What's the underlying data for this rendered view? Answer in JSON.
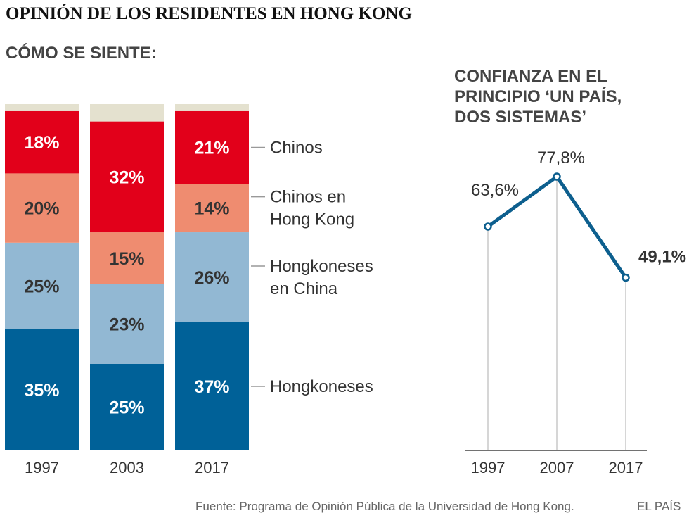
{
  "header": {
    "title": "OPINIÓN DE LOS RESIDENTES EN HONG KONG"
  },
  "colors": {
    "hongkoneses": "#006198",
    "hongkoneses_en_china": "#92b8d3",
    "chinos_en_hong_kong": "#ef8c70",
    "chinos": "#e2001a",
    "otros": "#e4e1cf",
    "line": "#0d5f8e"
  },
  "chart_data": [
    {
      "type": "bar",
      "stacked": true,
      "title": "CÓMO SE SIENTE:",
      "categories": [
        "1997",
        "2003",
        "2017"
      ],
      "series": [
        {
          "name": "Hongkoneses",
          "values": [
            35,
            25,
            37
          ],
          "labels": [
            "35%",
            "25%",
            "37%"
          ]
        },
        {
          "name": "Hongkoneses en China",
          "legend_lines": [
            "Hongkoneses",
            "en China"
          ],
          "values": [
            25,
            23,
            26
          ],
          "labels": [
            "25%",
            "23%",
            "26%"
          ]
        },
        {
          "name": "Chinos en Hong Kong",
          "legend_lines": [
            "Chinos en",
            "Hong Kong"
          ],
          "values": [
            20,
            15,
            14
          ],
          "labels": [
            "20%",
            "15%",
            "14%"
          ]
        },
        {
          "name": "Chinos",
          "values": [
            18,
            32,
            21
          ],
          "labels": [
            "18%",
            "32%",
            "21%"
          ]
        },
        {
          "values": [
            2,
            5,
            2
          ]
        }
      ],
      "ylim": [
        0,
        100
      ],
      "legend": "right"
    },
    {
      "type": "line",
      "title_lines": [
        "CONFIANZA EN EL",
        "PRINCIPIO ‘UN PAÍS,",
        "DOS SISTEMAS’"
      ],
      "categories": [
        "1997",
        "2007",
        "2017"
      ],
      "values": [
        63.6,
        77.8,
        49.1
      ],
      "labels": [
        "63,6%",
        "77,8%",
        "49,1%"
      ],
      "ylim": [
        0,
        100
      ],
      "grid": false
    }
  ],
  "footer": {
    "source": "Fuente: Programa de Opinión Pública de la Universidad de Hong Kong.",
    "brand": "EL PAÍS"
  }
}
